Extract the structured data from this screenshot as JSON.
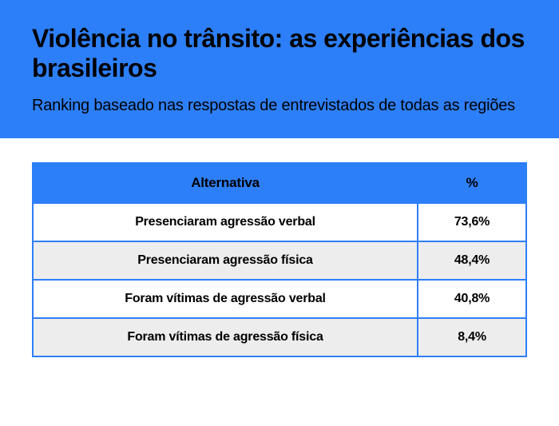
{
  "header": {
    "title": "Violência no trânsito: as experiências dos brasileiros",
    "subtitle": "Ranking baseado nas respostas de entrevistados de todas as regiões",
    "background_color": "#2d7ff9",
    "title_color": "#000000",
    "title_fontsize": 32,
    "subtitle_color": "#000000",
    "subtitle_fontsize": 20
  },
  "table": {
    "type": "table",
    "columns": [
      "Alternativa",
      "%"
    ],
    "rows": [
      [
        "Presenciaram agressão verbal",
        "73,6%"
      ],
      [
        "Presenciaram agressão física",
        "48,4%"
      ],
      [
        "Foram vítimas de agressão verbal",
        "40,8%"
      ],
      [
        "Foram vítimas de agressão física",
        "8,4%"
      ]
    ],
    "header_bg": "#2d7ff9",
    "header_fontsize": 17,
    "row_alt_colors": [
      "#ffffff",
      "#ededed"
    ],
    "border_color": "#2d7ff9",
    "border_width": 2,
    "cell_fontsize": 16
  }
}
